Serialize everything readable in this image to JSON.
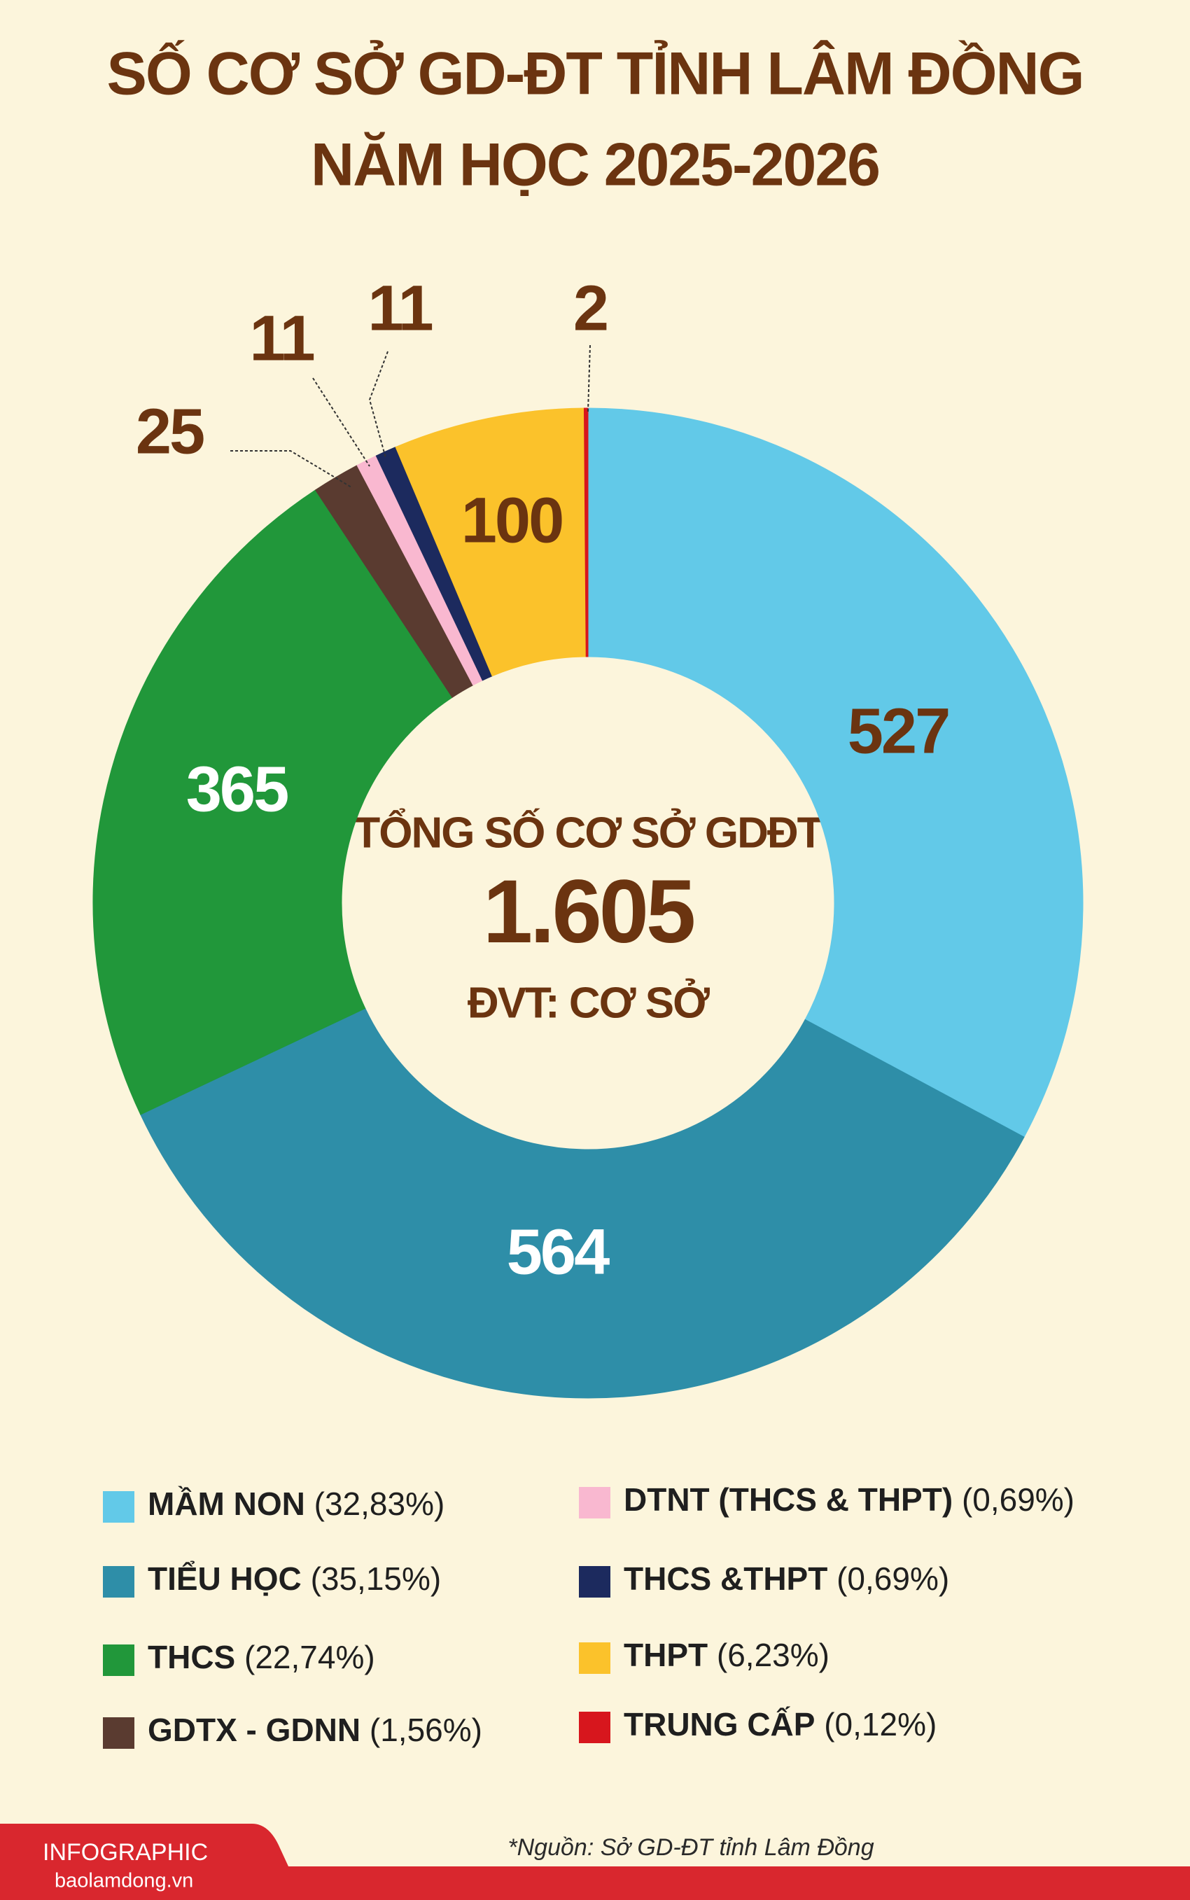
{
  "chart_data": {
    "type": "donut",
    "title": [
      "SỐ CƠ SỞ GD-ĐT TỈNH LÂM ĐỒNG",
      "NĂM HỌC 2025-2026"
    ],
    "center_text": [
      "TỔNG SỐ CƠ SỞ GDĐT",
      "1.605",
      "ĐVT: CƠ SỞ"
    ],
    "categories": [
      "MẦM NON",
      "TIỂU HỌC",
      "THCS",
      "GDTX - GDNN",
      "DTNT (THCS & THPT)",
      "THCS &THPT",
      "THPT",
      "TRUNG CẤP"
    ],
    "values": [
      527,
      564,
      365,
      25,
      11,
      11,
      100,
      2
    ],
    "percent_labels": [
      "(32,83%)",
      "(35,15%)",
      "(22,74%)",
      "(1,56%)",
      "(0,69%)",
      "(0,69%)",
      "(6,23%)",
      "(0,12%)"
    ],
    "colors": [
      "#62c9e8",
      "#2e8ea8",
      "#21973a",
      "#5a3b30",
      "#f9b8d0",
      "#1c2a5e",
      "#fbc22b",
      "#d7161d"
    ],
    "footer": {
      "brand": "INFOGRAPHIC",
      "site": "baolamdong.vn",
      "source": "*Nguồn: Sở GD-ĐT tỉnh Lâm Đồng"
    }
  }
}
